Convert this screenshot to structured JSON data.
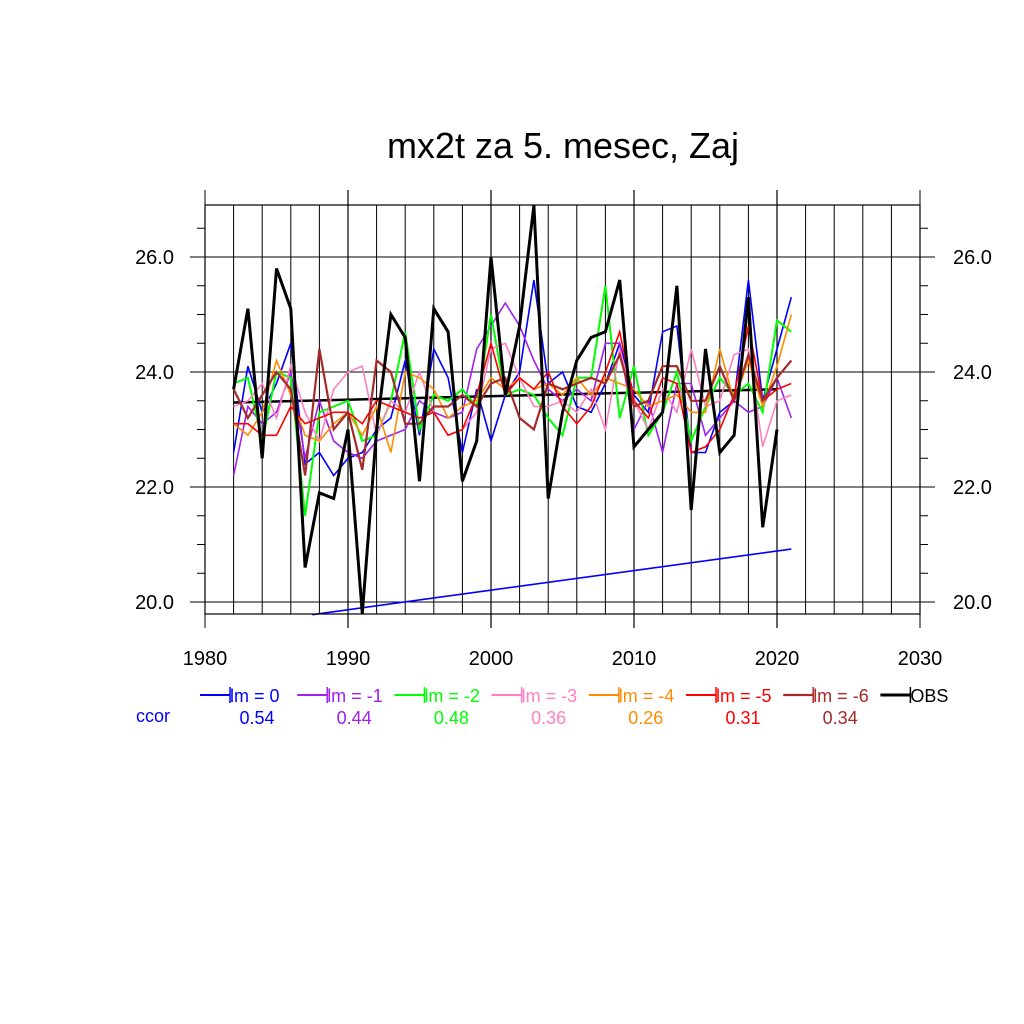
{
  "chart_data": {
    "type": "line",
    "title": "mx2t za 5. mesec, Zaj",
    "xlabel": "",
    "ylabel": "",
    "xlim": [
      1980,
      2030
    ],
    "ylim": [
      19.8,
      26.9
    ],
    "x_ticks": [
      "1980",
      "1990",
      "2000",
      "2010",
      "2020",
      "2030"
    ],
    "y_ticks": [
      "20.0",
      "22.0",
      "24.0",
      "26.0"
    ],
    "grid": true,
    "legend_position": "bottom",
    "ccor_label": "ccor",
    "years": [
      1982,
      1983,
      1984,
      1985,
      1986,
      1987,
      1988,
      1989,
      1990,
      1991,
      1992,
      1993,
      1994,
      1995,
      1996,
      1997,
      1998,
      1999,
      2000,
      2001,
      2002,
      2003,
      2004,
      2005,
      2006,
      2007,
      2008,
      2009,
      2010,
      2011,
      2012,
      2013,
      2014,
      2015,
      2016,
      2017,
      2018,
      2019,
      2020,
      2021
    ],
    "series": [
      {
        "name": "lm = 0",
        "color": "#0000ff",
        "width": 1.6,
        "ccor": "0.54",
        "values": [
          22.6,
          24.1,
          23.3,
          23.8,
          24.5,
          22.4,
          22.6,
          22.2,
          22.5,
          22.6,
          23.0,
          23.2,
          24.2,
          22.9,
          24.4,
          23.9,
          22.6,
          23.7,
          22.8,
          23.6,
          24.0,
          25.6,
          23.8,
          24.0,
          23.4,
          23.3,
          23.8,
          24.5,
          23.6,
          23.3,
          24.7,
          24.8,
          22.6,
          22.6,
          23.3,
          23.5,
          25.6,
          23.5,
          24.4,
          25.3
        ]
      },
      {
        "name": "lm = -1",
        "color": "#a020f0",
        "width": 1.6,
        "ccor": "0.44",
        "values": [
          22.2,
          23.4,
          23.1,
          23.3,
          24.0,
          22.5,
          23.5,
          22.8,
          22.6,
          22.5,
          22.8,
          22.9,
          23.0,
          23.5,
          23.3,
          23.2,
          23.3,
          24.4,
          24.8,
          25.2,
          24.8,
          24.2,
          23.7,
          23.5,
          23.7,
          23.5,
          24.5,
          24.5,
          23.0,
          23.5,
          22.6,
          23.8,
          23.8,
          22.9,
          23.2,
          23.5,
          23.3,
          23.4,
          23.9,
          23.2
        ]
      },
      {
        "name": "lm = -2",
        "color": "#00ff00",
        "width": 2.0,
        "ccor": "0.48",
        "values": [
          23.8,
          23.9,
          22.8,
          24.0,
          23.9,
          21.5,
          23.3,
          23.4,
          23.5,
          22.8,
          22.9,
          23.5,
          24.7,
          23.0,
          23.6,
          23.5,
          23.7,
          23.4,
          25.0,
          23.6,
          23.7,
          23.6,
          23.2,
          22.9,
          23.9,
          23.9,
          25.5,
          23.2,
          24.1,
          22.9,
          23.3,
          24.0,
          22.8,
          23.4,
          23.9,
          23.6,
          23.8,
          23.3,
          24.9,
          24.7
        ]
      },
      {
        "name": "lm = -3",
        "color": "#ff80c0",
        "width": 1.6,
        "ccor": "0.36",
        "values": [
          23.4,
          23.5,
          23.8,
          23.2,
          24.1,
          23.3,
          22.8,
          23.7,
          24.0,
          24.1,
          22.9,
          23.5,
          23.3,
          24.0,
          23.3,
          22.9,
          23.0,
          23.3,
          24.4,
          24.5,
          23.9,
          23.4,
          23.4,
          23.5,
          23.3,
          23.7,
          23.0,
          24.4,
          23.5,
          23.0,
          23.7,
          23.3,
          24.4,
          23.4,
          23.5,
          24.3,
          24.4,
          22.7,
          23.5,
          23.6
        ]
      },
      {
        "name": "lm = -4",
        "color": "#ff8c00",
        "width": 1.6,
        "ccor": "0.26",
        "values": [
          23.1,
          22.9,
          23.3,
          24.2,
          23.6,
          22.9,
          22.8,
          23.1,
          23.3,
          22.9,
          23.4,
          22.6,
          24.0,
          23.9,
          23.7,
          23.2,
          23.4,
          23.5,
          23.9,
          23.7,
          23.9,
          23.7,
          23.8,
          23.6,
          23.9,
          23.6,
          23.9,
          23.8,
          23.7,
          23.4,
          23.5,
          23.6,
          23.3,
          23.3,
          24.4,
          23.5,
          24.2,
          23.4,
          24.1,
          25.0
        ]
      },
      {
        "name": "lm = -5",
        "color": "#ff0000",
        "width": 1.6,
        "ccor": "0.31",
        "values": [
          23.1,
          23.1,
          22.9,
          22.9,
          23.4,
          23.1,
          23.2,
          23.3,
          23.3,
          23.1,
          23.5,
          23.4,
          23.3,
          23.2,
          23.3,
          22.9,
          23.0,
          23.6,
          24.5,
          23.6,
          23.9,
          23.7,
          24.0,
          23.4,
          23.1,
          23.4,
          24.0,
          24.7,
          23.5,
          23.2,
          23.9,
          23.8,
          22.6,
          22.7,
          23.0,
          23.6,
          24.8,
          23.5,
          23.7,
          23.8
        ]
      },
      {
        "name": "lm = -6",
        "color": "#a52a2a",
        "width": 2.2,
        "ccor": "0.34",
        "values": [
          23.7,
          23.2,
          23.6,
          24.0,
          23.7,
          22.2,
          24.4,
          23.0,
          23.3,
          22.3,
          24.2,
          24.0,
          23.1,
          23.1,
          23.4,
          23.4,
          23.6,
          23.4,
          23.8,
          23.9,
          23.2,
          23.0,
          23.8,
          23.7,
          23.8,
          23.9,
          23.8,
          24.3,
          23.4,
          23.5,
          24.1,
          24.1,
          23.5,
          23.5,
          24.1,
          23.5,
          24.3,
          23.5,
          23.9,
          24.2
        ]
      },
      {
        "name": "OBS",
        "color": "#000000",
        "width": 3.0,
        "ccor": "",
        "values": [
          23.7,
          25.1,
          22.5,
          25.8,
          25.1,
          20.6,
          21.9,
          21.8,
          23.0,
          19.8,
          23.0,
          25.0,
          24.6,
          22.1,
          25.1,
          24.7,
          22.1,
          22.8,
          26.0,
          23.6,
          24.8,
          26.9,
          21.8,
          23.3,
          24.2,
          24.6,
          24.7,
          25.6,
          22.7,
          23.0,
          23.3,
          25.5,
          21.6,
          24.4,
          22.6,
          22.9,
          25.3,
          21.3,
          23.0,
          null
        ]
      }
    ],
    "trend_lines": [
      {
        "name": "obs-trend",
        "color": "#000000",
        "width": 2.5,
        "x": [
          1982,
          2020
        ],
        "y": [
          23.47,
          23.7
        ]
      },
      {
        "name": "lm0-trend",
        "color": "#0000ff",
        "width": 1.6,
        "x": [
          1987.5,
          2021
        ],
        "y": [
          19.78,
          20.92
        ]
      }
    ]
  }
}
